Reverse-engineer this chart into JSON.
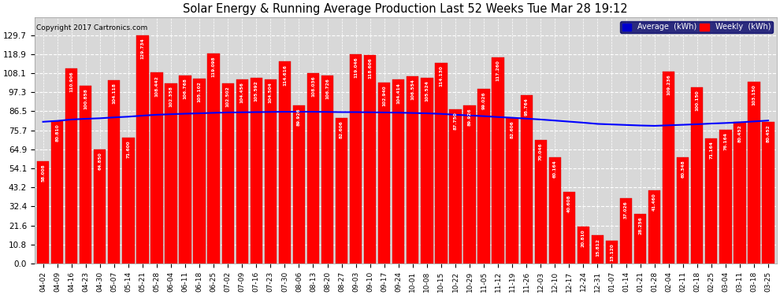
{
  "title": "Solar Energy & Running Average Production Last 52 Weeks Tue Mar 28 19:12",
  "copyright": "Copyright 2017 Cartronics.com",
  "bar_color": "#ff0000",
  "avg_line_color": "#0000ff",
  "background_color": "#ffffff",
  "plot_bg_color": "#d8d8d8",
  "grid_color": "#ffffff",
  "categories": [
    "04-02",
    "04-09",
    "04-16",
    "04-23",
    "04-30",
    "05-07",
    "05-14",
    "05-21",
    "05-28",
    "06-04",
    "06-11",
    "06-18",
    "06-25",
    "07-02",
    "07-09",
    "07-16",
    "07-23",
    "07-30",
    "08-06",
    "08-13",
    "08-20",
    "08-27",
    "09-03",
    "09-10",
    "09-17",
    "09-24",
    "10-01",
    "10-08",
    "10-15",
    "10-22",
    "10-29",
    "11-05",
    "11-12",
    "11-19",
    "11-26",
    "12-03",
    "12-10",
    "12-17",
    "12-24",
    "12-31",
    "01-07",
    "01-14",
    "01-21",
    "01-28",
    "02-04",
    "02-11",
    "02-18",
    "02-25",
    "03-04",
    "03-11",
    "03-18",
    "03-25"
  ],
  "weekly_values": [
    58.008,
    80.81,
    110.906,
    100.858,
    64.85,
    104.118,
    71.6,
    129.734,
    108.442,
    102.358,
    106.768,
    105.102,
    119.098,
    102.502,
    104.456,
    105.592,
    104.504,
    114.616,
    89.926,
    108.036,
    106.726,
    82.606,
    119.046,
    118.606,
    102.94,
    104.414,
    106.554,
    105.524,
    114.13,
    87.75,
    89.926,
    99.026,
    117.26,
    82.606,
    95.764,
    70.046,
    60.164,
    40.608,
    20.81,
    15.812,
    13.12,
    37.026,
    28.256,
    41.46,
    109.236,
    60.348,
    100.15,
    71.164,
    76.164,
    80.452,
    103.15,
    80.452
  ],
  "avg_values": [
    80.5,
    81.0,
    81.8,
    82.2,
    82.5,
    83.0,
    83.4,
    84.0,
    84.5,
    84.8,
    85.1,
    85.3,
    85.6,
    85.8,
    85.9,
    86.0,
    86.1,
    86.2,
    86.2,
    86.2,
    86.1,
    86.0,
    86.0,
    85.9,
    85.8,
    85.7,
    85.5,
    85.3,
    85.0,
    84.5,
    84.1,
    83.7,
    83.2,
    82.8,
    82.3,
    81.8,
    81.2,
    80.6,
    80.0,
    79.3,
    79.0,
    78.7,
    78.4,
    78.2,
    78.5,
    78.8,
    79.1,
    79.5,
    79.8,
    80.2,
    80.7,
    81.2
  ],
  "ylim": [
    0.0,
    140.0
  ],
  "yticks": [
    0.0,
    10.8,
    21.6,
    32.4,
    43.2,
    54.1,
    64.9,
    75.7,
    86.5,
    97.3,
    108.1,
    118.9,
    129.7
  ]
}
